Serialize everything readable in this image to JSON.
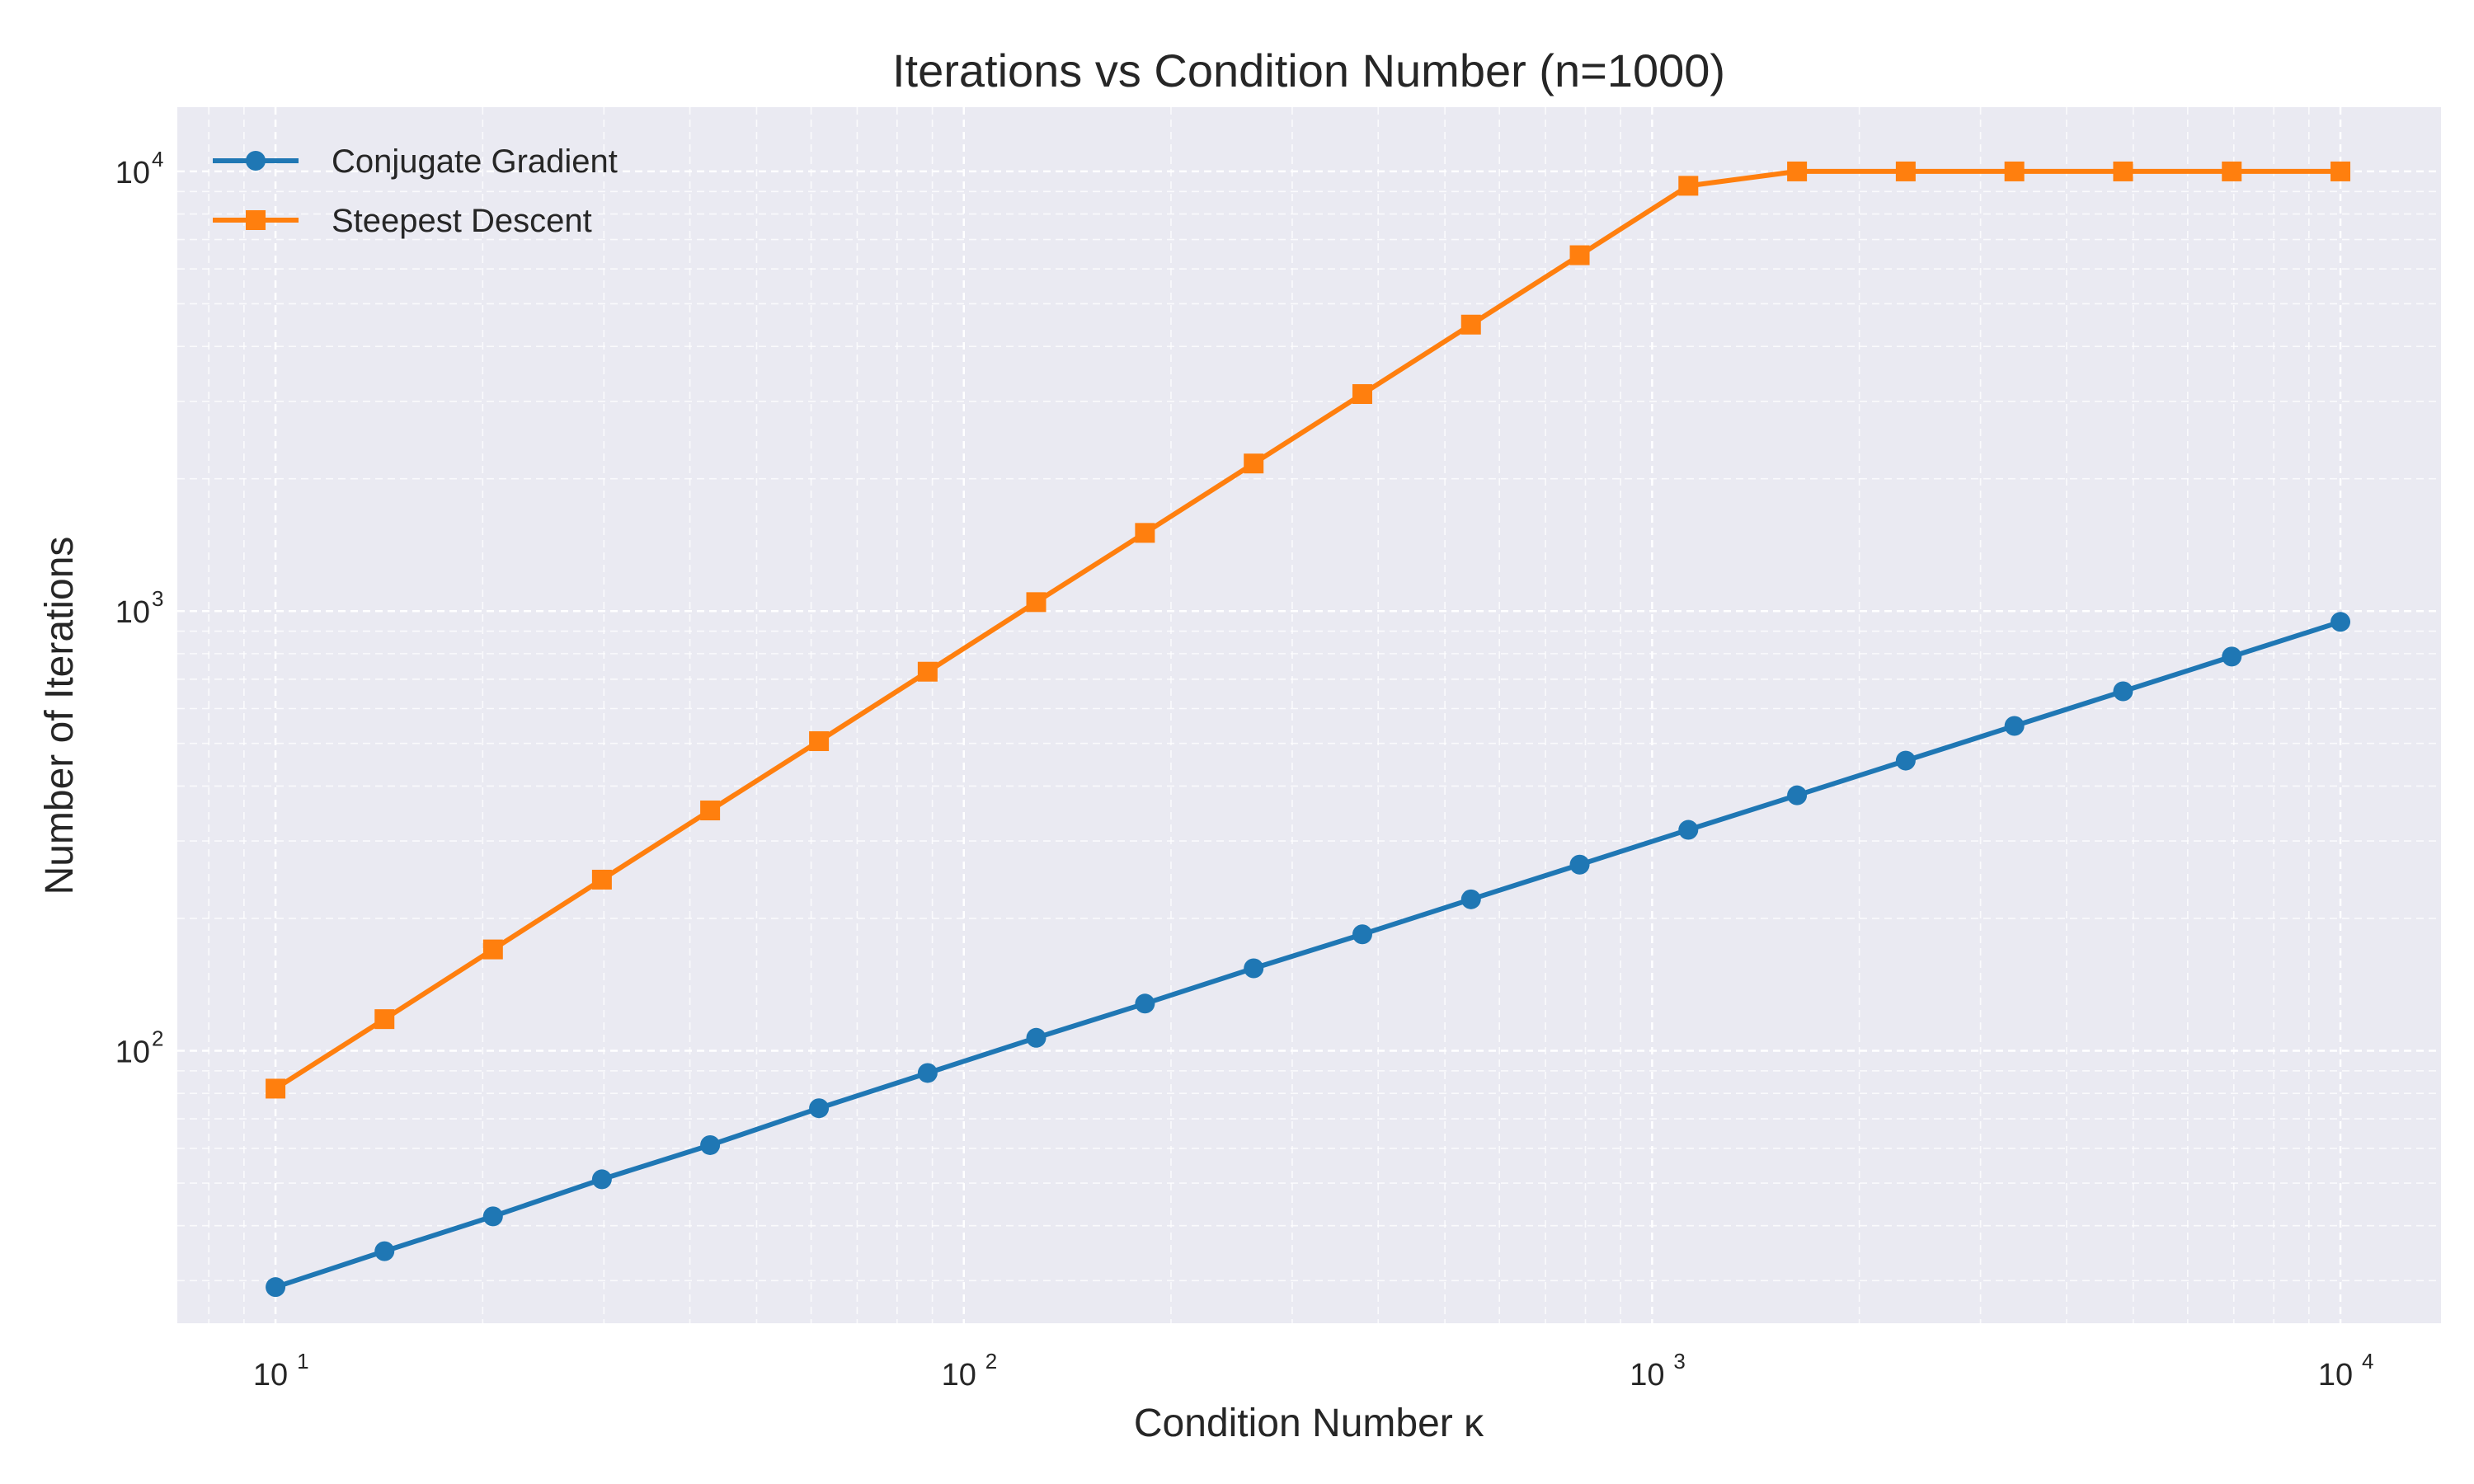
{
  "colors": {
    "plot_background": "#eaeaf2",
    "grid": "#ffffff",
    "conjugate_gradient": "#1f77b4",
    "steepest_descent": "#ff7f0e"
  },
  "chart_data": {
    "type": "line",
    "title": "Iterations vs Condition Number (n=1000)",
    "xlabel": "Condition Number κ",
    "ylabel": "Number of Iterations",
    "xscale": "log",
    "yscale": "log",
    "xlim": [
      7.2,
      14000
    ],
    "ylim": [
      24,
      14000
    ],
    "grid": true,
    "grid_style": "dashed",
    "legend_position": "top-left",
    "x_ticks": [
      {
        "base": "10",
        "exp": "1",
        "value": 10
      },
      {
        "base": "10",
        "exp": "2",
        "value": 100
      },
      {
        "base": "10",
        "exp": "3",
        "value": 1000
      },
      {
        "base": "10",
        "exp": "4",
        "value": 10000
      }
    ],
    "y_ticks": [
      {
        "base": "10",
        "exp": "2",
        "value": 100
      },
      {
        "base": "10",
        "exp": "3",
        "value": 1000
      },
      {
        "base": "10",
        "exp": "4",
        "value": 10000
      }
    ],
    "x": [
      10,
      14.4,
      20.7,
      29.8,
      42.8,
      61.6,
      88.6,
      127.4,
      183.3,
      263.7,
      379.3,
      545.6,
      784.8,
      1128.8,
      1623.8,
      2335.7,
      3359.8,
      4832.9,
      6951.9,
      10000
    ],
    "series": [
      {
        "name": "Conjugate Gradient",
        "marker": "circle",
        "color": "#1f77b4",
        "values": [
          29,
          35,
          42,
          51,
          61,
          74,
          89,
          107,
          128,
          154,
          184,
          221,
          265,
          318,
          381,
          457,
          548,
          657,
          788,
          945
        ]
      },
      {
        "name": "Steepest Descent",
        "marker": "square",
        "color": "#ff7f0e",
        "values": [
          82,
          118,
          170,
          245,
          352,
          506,
          728,
          1048,
          1506,
          2166,
          3116,
          4483,
          6448,
          9275,
          10000,
          10000,
          10000,
          10000,
          10000,
          10000
        ]
      }
    ]
  }
}
